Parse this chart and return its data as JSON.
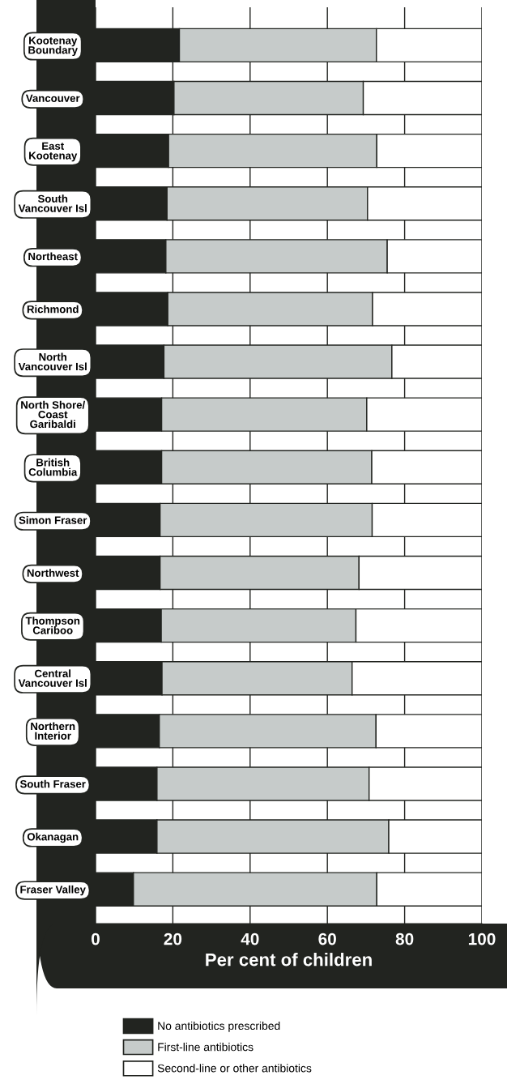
{
  "chart_data": {
    "type": "bar",
    "orientation": "horizontal",
    "stacked": true,
    "xlabel": "Per cent of children",
    "categories": [
      "Kootenay\nBoundary",
      "Vancouver",
      "East\nKootenay",
      "South\nVancouver Isl",
      "Northeast",
      "Richmond",
      "North\nVancouver Isl",
      "North Shore/\nCoast\nGaribaldi",
      "British\nColumbia",
      "Simon Fraser",
      "Northwest",
      "Thompson\nCariboo",
      "Central\nVancouver Isl",
      "Northern\nInterior",
      "South Fraser",
      "Okanagan",
      "Fraser Valley"
    ],
    "series": [
      {
        "name": "No antibiotics prescribed",
        "color": "#222420",
        "values": [
          21.7,
          20.3,
          18.9,
          18.5,
          18.2,
          18.7,
          17.7,
          17.1,
          17.1,
          16.7,
          16.7,
          17.0,
          17.2,
          16.5,
          15.9,
          15.9,
          9.8
        ]
      },
      {
        "name": "First-line antibiotics",
        "color": "#c6cbca",
        "values": [
          51.0,
          49.0,
          53.9,
          51.9,
          57.3,
          53.0,
          59.0,
          53.1,
          54.4,
          54.9,
          51.5,
          50.4,
          49.2,
          56.1,
          54.9,
          60.0,
          63.0
        ]
      },
      {
        "name": "Second-line or other antibiotics",
        "color": "#ffffff",
        "values": [
          27.3,
          30.7,
          27.2,
          29.6,
          24.5,
          28.3,
          23.3,
          29.8,
          28.5,
          28.4,
          31.8,
          32.6,
          33.6,
          27.4,
          29.2,
          24.1,
          27.2
        ]
      }
    ],
    "xlim": [
      0,
      100
    ],
    "xticks": [
      0,
      20,
      40,
      60,
      80,
      100
    ],
    "grid": "x",
    "legend": "bottom"
  }
}
